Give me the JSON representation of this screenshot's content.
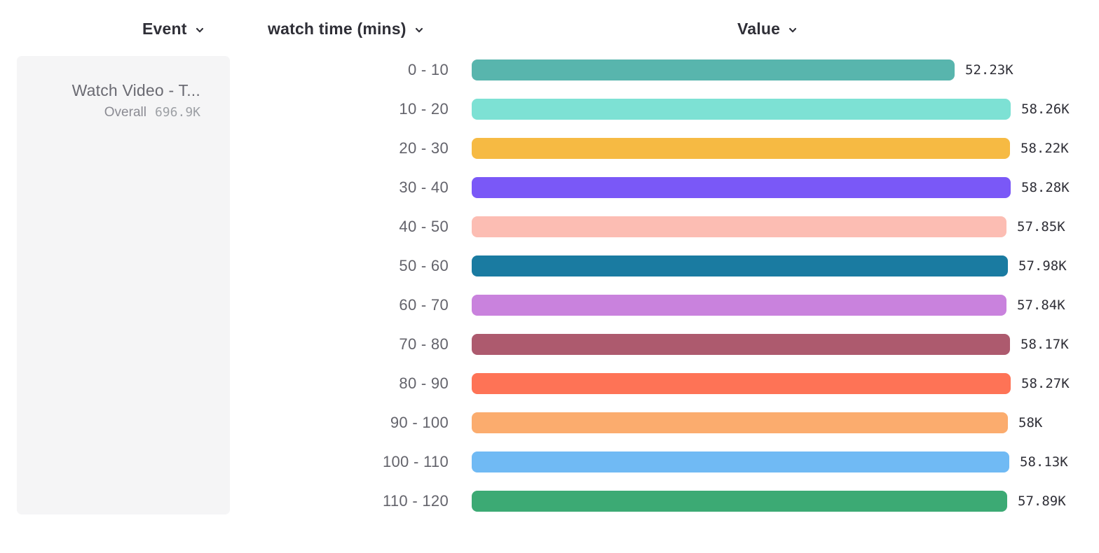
{
  "header": {
    "event_label": "Event",
    "watch_time_label": "watch time (mins)",
    "value_label": "Value"
  },
  "event_panel": {
    "event_name": "Watch Video - T...",
    "overall_label": "Overall",
    "overall_value": "696.9K"
  },
  "colors": {
    "card_background": "#f5f5f6",
    "header_text": "#2f2f37",
    "bucket_label_text": "#63636b",
    "value_label_text": "#2f2f37",
    "event_name_text": "#6a6a72",
    "overall_label_text": "#8b8b93",
    "overall_value_text": "#9da0a5"
  },
  "chart_data": {
    "type": "bar",
    "orientation": "horizontal",
    "series_name": "Watch Video - T...",
    "overall_total": "696.9K",
    "category_axis_label": "watch time (mins)",
    "value_axis_label": "Value",
    "xlim": [
      0,
      58280
    ],
    "grid": false,
    "legend": false,
    "categories": [
      "0 - 10",
      "10 - 20",
      "20 - 30",
      "30 - 40",
      "40 - 50",
      "50 - 60",
      "60 - 70",
      "70 - 80",
      "80 - 90",
      "90 - 100",
      "100 - 110",
      "110 - 120"
    ],
    "values": [
      52230,
      58260,
      58220,
      58280,
      57850,
      57980,
      57840,
      58170,
      58270,
      58000,
      58130,
      57890
    ],
    "value_labels": [
      "52.23K",
      "58.26K",
      "58.22K",
      "58.28K",
      "57.85K",
      "57.98K",
      "57.84K",
      "58.17K",
      "58.27K",
      "58K",
      "58.13K",
      "57.89K"
    ],
    "bar_colors": [
      "#58b5ad",
      "#7de1d4",
      "#f6ba43",
      "#7a58f7",
      "#fcbdb3",
      "#1a7ba1",
      "#c982dd",
      "#ad5a6e",
      "#fe7356",
      "#fbac6e",
      "#70baf4",
      "#3caa74"
    ]
  }
}
